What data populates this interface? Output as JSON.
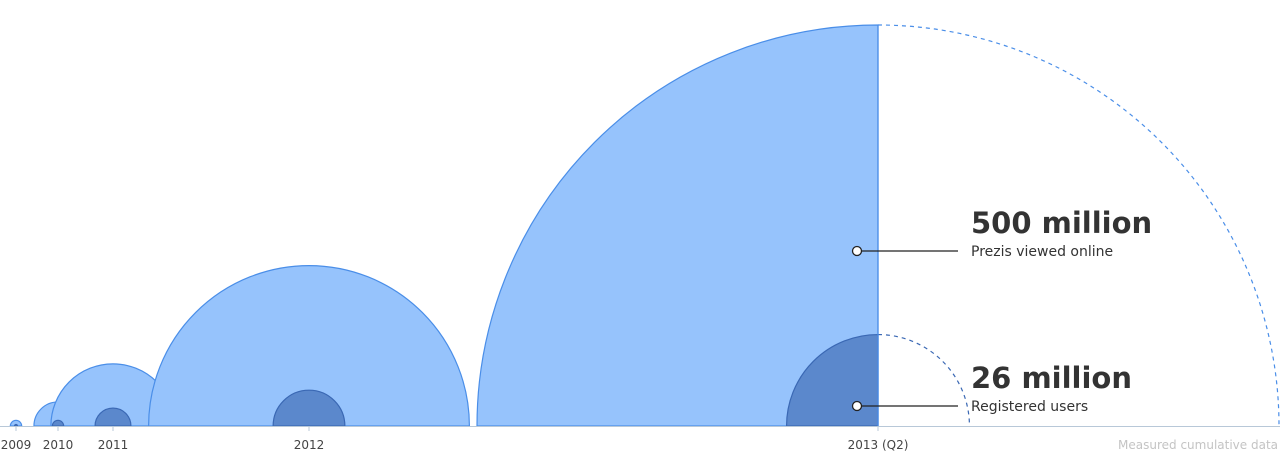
{
  "chart_data": {
    "type": "area",
    "x": [
      "2009",
      "2010",
      "2011",
      "2012",
      "2013 (Q2)"
    ],
    "series": [
      {
        "name": "Prezis viewed online",
        "values": [
          0.1,
          1.8,
          12,
          80,
          500
        ]
      },
      {
        "name": "Registered users",
        "values": [
          0.005,
          0.1,
          1,
          4,
          26
        ]
      }
    ],
    "annotations": [
      {
        "value_label": "500 million",
        "description": "Prezis viewed online"
      },
      {
        "value_label": "26 million",
        "description": "Registered users"
      }
    ],
    "note": "Measured cumulative data",
    "colors": {
      "views_fill": "#96c3fc",
      "views_stroke": "#4a8ee8",
      "users_fill": "#5b88cc",
      "users_stroke": "#3a68b4",
      "axis": "#b8c8d8",
      "dash": "#4a8ee8",
      "leader": "#222222"
    }
  }
}
